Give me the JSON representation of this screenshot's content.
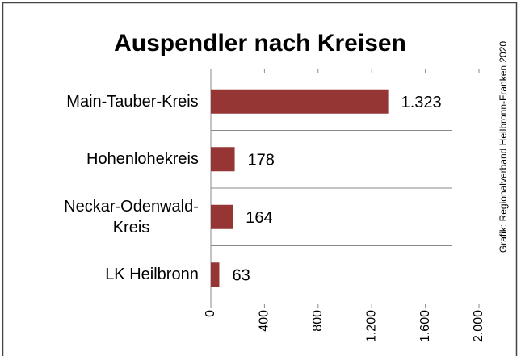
{
  "chart_data": {
    "type": "hbar",
    "title": "Auspendler nach Kreisen",
    "source": "Grafik: Regionalverband Heilbronn-Franken 2020",
    "categories": [
      "Main-Tauber-Kreis",
      "Hohenlohekreis",
      "Neckar-Odenwald-Kreis",
      "LK Heilbronn"
    ],
    "values": [
      1323,
      178,
      164,
      63
    ],
    "value_labels": [
      "1.323",
      "178",
      "164",
      "63"
    ],
    "color": "#963634",
    "xlim": [
      0,
      2000
    ],
    "xticks": [
      0,
      400,
      800,
      {
        "value": 1200,
        "label": "1.200"
      },
      {
        "value": 1600,
        "label": "1.600"
      },
      {
        "value": 2000,
        "label": "2.000"
      }
    ]
  }
}
